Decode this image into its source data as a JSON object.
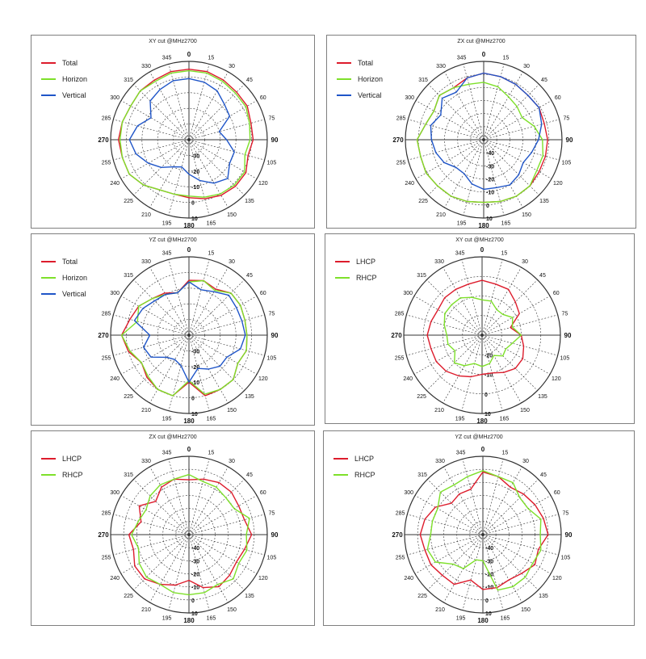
{
  "colors": {
    "total": "#dd1c2c",
    "horizon": "#7ee02a",
    "vertical": "#1f55c8",
    "lhcp": "#dd1c2c",
    "rhcp": "#7ee02a",
    "grid": "#333333"
  },
  "chart_data": [
    {
      "type": "polar-line",
      "title": "XY cut @MHz2700",
      "angle_labels": [
        "0",
        "15",
        "30",
        "45",
        "60",
        "75",
        "90",
        "105",
        "120",
        "135",
        "150",
        "165",
        "180",
        "195",
        "210",
        "225",
        "240",
        "255",
        "270",
        "285",
        "300",
        "315",
        "330",
        "345"
      ],
      "radial_labels": [
        "-30",
        "-20",
        "-10",
        "0",
        "10"
      ],
      "rlim": [
        -40,
        10
      ],
      "angle_step_deg": 15,
      "series": [
        {
          "name": "Total",
          "color": "#dd1c2c",
          "values": [
            5,
            5,
            4,
            3,
            3,
            1,
            1,
            -1,
            2,
            2,
            1,
            -1,
            -3,
            -4,
            -3,
            1,
            4,
            4,
            5,
            4,
            3,
            4,
            4,
            5
          ]
        },
        {
          "name": "Horizon",
          "color": "#7ee02a",
          "values": [
            4,
            4,
            3,
            2,
            2,
            0,
            -1,
            -3,
            1,
            1,
            0,
            -2,
            -4,
            -4,
            -3,
            1,
            4,
            4,
            4,
            4,
            3,
            4,
            3,
            4
          ]
        },
        {
          "name": "Vertical",
          "color": "#1f55c8",
          "values": [
            -1,
            -2,
            -4,
            -8,
            -10,
            -20,
            -16,
            -10,
            -10,
            -5,
            -8,
            -13,
            -18,
            -22,
            -20,
            -15,
            -10,
            -5,
            -2,
            -6,
            -12,
            -5,
            -3,
            -1
          ]
        }
      ]
    },
    {
      "type": "polar-line",
      "title": "ZX cut @MHz2700",
      "angle_labels": [
        "0",
        "15",
        "30",
        "45",
        "60",
        "75",
        "90",
        "105",
        "120",
        "135",
        "150",
        "165",
        "180",
        "195",
        "210",
        "225",
        "240",
        "255",
        "270",
        "285",
        "300",
        "315",
        "330",
        "345"
      ],
      "radial_labels": [
        "-40",
        "-30",
        "-20",
        "-10",
        "0",
        "10"
      ],
      "rlim": [
        -50,
        10
      ],
      "angle_step_deg": 15,
      "series": [
        {
          "name": "Total",
          "color": "#dd1c2c",
          "values": [
            1,
            0,
            -1,
            -2,
            -1,
            -2,
            -1,
            -1,
            -1,
            0,
            0,
            -1,
            -2,
            -1,
            0,
            0,
            1,
            0,
            1,
            -4,
            -6,
            -2,
            -4,
            -1
          ]
        },
        {
          "name": "Horizon",
          "color": "#7ee02a",
          "values": [
            -6,
            -8,
            -12,
            -14,
            -16,
            -10,
            -5,
            -3,
            -3,
            0,
            0,
            -1,
            -2,
            -1,
            0,
            0,
            1,
            0,
            1,
            -4,
            -6,
            -2,
            -4,
            -6
          ]
        },
        {
          "name": "Vertical",
          "color": "#1f55c8",
          "values": [
            1,
            0,
            -1,
            -2,
            -1,
            -4,
            -8,
            -12,
            -15,
            -12,
            -10,
            -12,
            -12,
            -15,
            -20,
            -20,
            -15,
            -12,
            -10,
            -8,
            -12,
            -5,
            -8,
            -1
          ]
        }
      ]
    },
    {
      "type": "polar-line",
      "title": "YZ cut @MHz2700",
      "angle_labels": [
        "0",
        "15",
        "30",
        "45",
        "60",
        "75",
        "90",
        "105",
        "120",
        "135",
        "150",
        "165",
        "180",
        "195",
        "210",
        "225",
        "240",
        "255",
        "270",
        "285",
        "300",
        "315",
        "330",
        "345"
      ],
      "radial_labels": [
        "-30",
        "-20",
        "-10",
        "0",
        "10"
      ],
      "rlim": [
        -40,
        10
      ],
      "angle_step_deg": 15,
      "series": [
        {
          "name": "Total",
          "color": "#dd1c2c",
          "values": [
            -5,
            -4,
            -6,
            -2,
            -2,
            -3,
            -3,
            -2,
            -4,
            0,
            0,
            0,
            -10,
            0,
            0,
            -2,
            -5,
            0,
            3,
            -1,
            -3,
            -7,
            -9,
            -12
          ]
        },
        {
          "name": "Horizon",
          "color": "#7ee02a",
          "values": [
            -6,
            -4,
            -7,
            -2,
            -2,
            -3,
            -3,
            -2,
            -4,
            0,
            0,
            -1,
            -11,
            0,
            0,
            -3,
            -5,
            -1,
            3,
            -6,
            -3,
            -7,
            -10,
            -12
          ]
        },
        {
          "name": "Vertical",
          "color": "#1f55c8",
          "values": [
            -6,
            -10,
            -8,
            -4,
            -5,
            -5,
            -4,
            -6,
            -12,
            -12,
            -15,
            -18,
            -10,
            -20,
            -22,
            -20,
            -12,
            -10,
            -15,
            -4,
            -6,
            -9,
            -10,
            -12
          ]
        }
      ]
    },
    {
      "type": "polar-line",
      "title": "XY cut @MHz2700",
      "angle_labels": [
        "0",
        "15",
        "30",
        "45",
        "60",
        "75",
        "90",
        "105",
        "120",
        "135",
        "150",
        "165",
        "180",
        "195",
        "210",
        "225",
        "240",
        "255",
        "270",
        "285",
        "300",
        "315",
        "330",
        "345"
      ],
      "radial_labels": [
        "-20",
        "-10",
        "0",
        "10"
      ],
      "rlim": [
        -30,
        10
      ],
      "angle_step_deg": 15,
      "series": [
        {
          "name": "LHCP",
          "color": "#dd1c2c",
          "values": [
            -2,
            -3,
            -3,
            -6,
            -8,
            -15,
            -10,
            -8,
            -6,
            -6,
            -8,
            -10,
            -10,
            -8,
            -6,
            -4,
            -3,
            -3,
            -2,
            -3,
            -4,
            -3,
            -3,
            -3
          ]
        },
        {
          "name": "RHCP",
          "color": "#7ee02a",
          "values": [
            -12,
            -12,
            -15,
            -15,
            -12,
            -14,
            -10,
            -14,
            -16,
            -15,
            -18,
            -15,
            -14,
            -15,
            -12,
            -10,
            -14,
            -12,
            -12,
            -10,
            -8,
            -8,
            -8,
            -10
          ]
        }
      ]
    },
    {
      "type": "polar-line",
      "title": "ZX cut @MHz2700",
      "angle_labels": [
        "0",
        "15",
        "30",
        "45",
        "60",
        "75",
        "90",
        "105",
        "120",
        "135",
        "150",
        "165",
        "180",
        "195",
        "210",
        "225",
        "240",
        "255",
        "270",
        "285",
        "300",
        "315",
        "330",
        "345"
      ],
      "radial_labels": [
        "-40",
        "-30",
        "-20",
        "-10",
        "0",
        "10"
      ],
      "rlim": [
        -50,
        10
      ],
      "angle_step_deg": 15,
      "series": [
        {
          "name": "LHCP",
          "color": "#dd1c2c",
          "values": [
            -8,
            -6,
            -4,
            -4,
            -6,
            -6,
            -2,
            -6,
            -8,
            -6,
            -4,
            -8,
            -15,
            -10,
            -6,
            -2,
            -2,
            -6,
            -4,
            -12,
            -6,
            -14,
            -8,
            -6
          ]
        },
        {
          "name": "RHCP",
          "color": "#7ee02a",
          "values": [
            -4,
            -8,
            -8,
            -10,
            -10,
            -2,
            -6,
            -4,
            -6,
            -2,
            -6,
            -4,
            -4,
            -4,
            -6,
            -4,
            -6,
            -10,
            -6,
            -10,
            -12,
            -8,
            -6,
            -6
          ]
        }
      ]
    },
    {
      "type": "polar-line",
      "title": "YZ cut @MHz2700",
      "angle_labels": [
        "0",
        "15",
        "30",
        "45",
        "60",
        "75",
        "90",
        "105",
        "120",
        "135",
        "150",
        "165",
        "180",
        "195",
        "210",
        "225",
        "240",
        "255",
        "270",
        "285",
        "300",
        "315",
        "330",
        "345"
      ],
      "radial_labels": [
        "-40",
        "-30",
        "-20",
        "-10",
        "0",
        "10"
      ],
      "rlim": [
        -50,
        10
      ],
      "angle_step_deg": 15,
      "series": [
        {
          "name": "LHCP",
          "color": "#dd1c2c",
          "values": [
            -2,
            -4,
            -8,
            -6,
            -4,
            -2,
            0,
            -6,
            -4,
            -8,
            -10,
            -8,
            -8,
            -14,
            -6,
            -6,
            -4,
            -4,
            -2,
            -4,
            -8,
            -16,
            -14,
            -14
          ]
        },
        {
          "name": "RHCP",
          "color": "#7ee02a",
          "values": [
            -1,
            -4,
            -4,
            -10,
            -10,
            -4,
            -6,
            -4,
            -6,
            -4,
            -4,
            -6,
            -30,
            -30,
            -20,
            -18,
            -8,
            -6,
            -10,
            -10,
            -10,
            -4,
            -6,
            -4
          ]
        }
      ]
    }
  ]
}
